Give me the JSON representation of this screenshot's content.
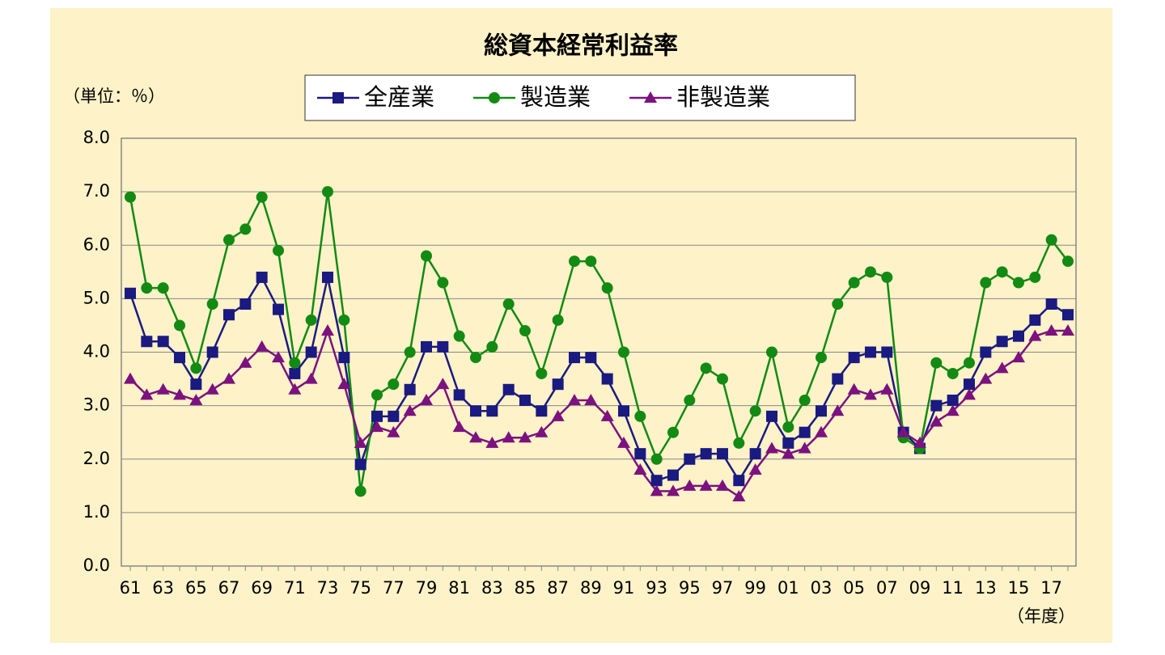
{
  "chart_data": {
    "type": "line",
    "title": "総資本経常利益率",
    "y_label": "（単位：％）",
    "x_label": "（年度）",
    "categories": [
      "61",
      null,
      "63",
      null,
      "65",
      null,
      "67",
      null,
      "69",
      null,
      "71",
      null,
      "73",
      null,
      "75",
      null,
      "77",
      null,
      "79",
      null,
      "81",
      null,
      "83",
      null,
      "85",
      null,
      "87",
      null,
      "89",
      null,
      "91",
      null,
      "93",
      null,
      "95",
      null,
      "97",
      null,
      "99",
      null,
      "01",
      null,
      "03",
      null,
      "05",
      null,
      "07",
      null,
      "09",
      null,
      "11",
      null,
      "13",
      null,
      "15",
      null,
      "17",
      null
    ],
    "series": [
      {
        "name": "全産業",
        "color": "#1a1a80",
        "marker": "square",
        "values": [
          5.1,
          4.2,
          4.2,
          3.9,
          3.4,
          4.0,
          4.7,
          4.9,
          5.4,
          4.8,
          3.6,
          4.0,
          5.4,
          3.9,
          1.9,
          2.8,
          2.8,
          3.3,
          4.1,
          4.1,
          3.2,
          2.9,
          2.9,
          3.3,
          3.1,
          2.9,
          3.4,
          3.9,
          3.9,
          3.5,
          2.9,
          2.1,
          1.6,
          1.7,
          2.0,
          2.1,
          2.1,
          1.6,
          2.1,
          2.8,
          2.3,
          2.5,
          2.9,
          3.5,
          3.9,
          4.0,
          4.0,
          2.5,
          2.2,
          3.0,
          3.1,
          3.4,
          4.0,
          4.2,
          4.3,
          4.6,
          4.9,
          4.7
        ]
      },
      {
        "name": "製造業",
        "color": "#138a13",
        "marker": "circle",
        "values": [
          6.9,
          5.2,
          5.2,
          4.5,
          3.7,
          4.9,
          6.1,
          6.3,
          6.9,
          5.9,
          3.8,
          4.6,
          7.0,
          4.6,
          1.4,
          3.2,
          3.4,
          4.0,
          5.8,
          5.3,
          4.3,
          3.9,
          4.1,
          4.9,
          4.4,
          3.6,
          4.6,
          5.7,
          5.7,
          5.2,
          4.0,
          2.8,
          2.0,
          2.5,
          3.1,
          3.7,
          3.5,
          2.3,
          2.9,
          4.0,
          2.6,
          3.1,
          3.9,
          4.9,
          5.3,
          5.5,
          5.4,
          2.4,
          2.2,
          3.8,
          3.6,
          3.8,
          5.3,
          5.5,
          5.3,
          5.4,
          6.1,
          5.7
        ]
      },
      {
        "name": "非製造業",
        "color": "#7b127f",
        "marker": "triangle",
        "values": [
          3.5,
          3.2,
          3.3,
          3.2,
          3.1,
          3.3,
          3.5,
          3.8,
          4.1,
          3.9,
          3.3,
          3.5,
          4.4,
          3.4,
          2.3,
          2.6,
          2.5,
          2.9,
          3.1,
          3.4,
          2.6,
          2.4,
          2.3,
          2.4,
          2.4,
          2.5,
          2.8,
          3.1,
          3.1,
          2.8,
          2.3,
          1.8,
          1.4,
          1.4,
          1.5,
          1.5,
          1.5,
          1.3,
          1.8,
          2.2,
          2.1,
          2.2,
          2.5,
          2.9,
          3.3,
          3.2,
          3.3,
          2.5,
          2.3,
          2.7,
          2.9,
          3.2,
          3.5,
          3.7,
          3.9,
          4.3,
          4.4,
          4.4
        ]
      }
    ],
    "ylim": [
      0,
      8
    ],
    "yticks": [
      {
        "value": 0,
        "label": "0.0"
      },
      {
        "value": 1,
        "label": "1.0"
      },
      {
        "value": 2,
        "label": "2.0"
      },
      {
        "value": 3,
        "label": "3.0"
      },
      {
        "value": 4,
        "label": "4.0"
      },
      {
        "value": 5,
        "label": "5.0"
      },
      {
        "value": 6,
        "label": "6.0"
      },
      {
        "value": 7,
        "label": "7.0"
      },
      {
        "value": 8,
        "label": "8.0"
      }
    ],
    "grid": true,
    "legend": "top"
  }
}
